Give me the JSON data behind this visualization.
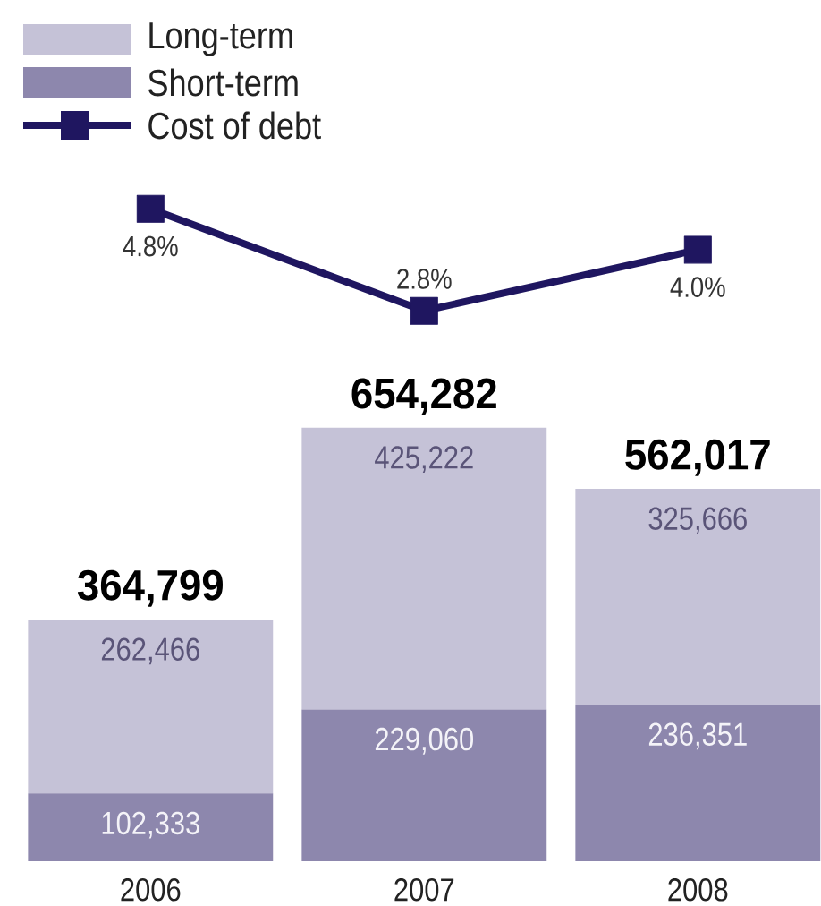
{
  "chart_data": {
    "type": "bar",
    "stacked": true,
    "categories": [
      "2006",
      "2007",
      "2008"
    ],
    "series": [
      {
        "name": "Short-term",
        "color": "#8d87ad",
        "values": [
          102333,
          229060,
          236351
        ],
        "value_labels": [
          "102,333",
          "229,060",
          "236,351"
        ]
      },
      {
        "name": "Long-term",
        "color": "#c5c2d7",
        "values": [
          262466,
          425222,
          325666
        ],
        "value_labels": [
          "262,466",
          "425,222",
          "325,666"
        ]
      },
      {
        "name": "Cost of debt",
        "type": "line",
        "axis": "y2",
        "marker": "square",
        "color": "#1f1660",
        "values": [
          4.8,
          2.8,
          4.0
        ],
        "value_labels": [
          "4.8%",
          "2.8%",
          "4.0%"
        ]
      }
    ],
    "totals": [
      "364,799",
      "654,282",
      "562,017"
    ],
    "ylim": [
      0,
      1000000
    ],
    "y2lim": [
      -8,
      5
    ],
    "tick_labels": "x",
    "legend": "top left"
  }
}
